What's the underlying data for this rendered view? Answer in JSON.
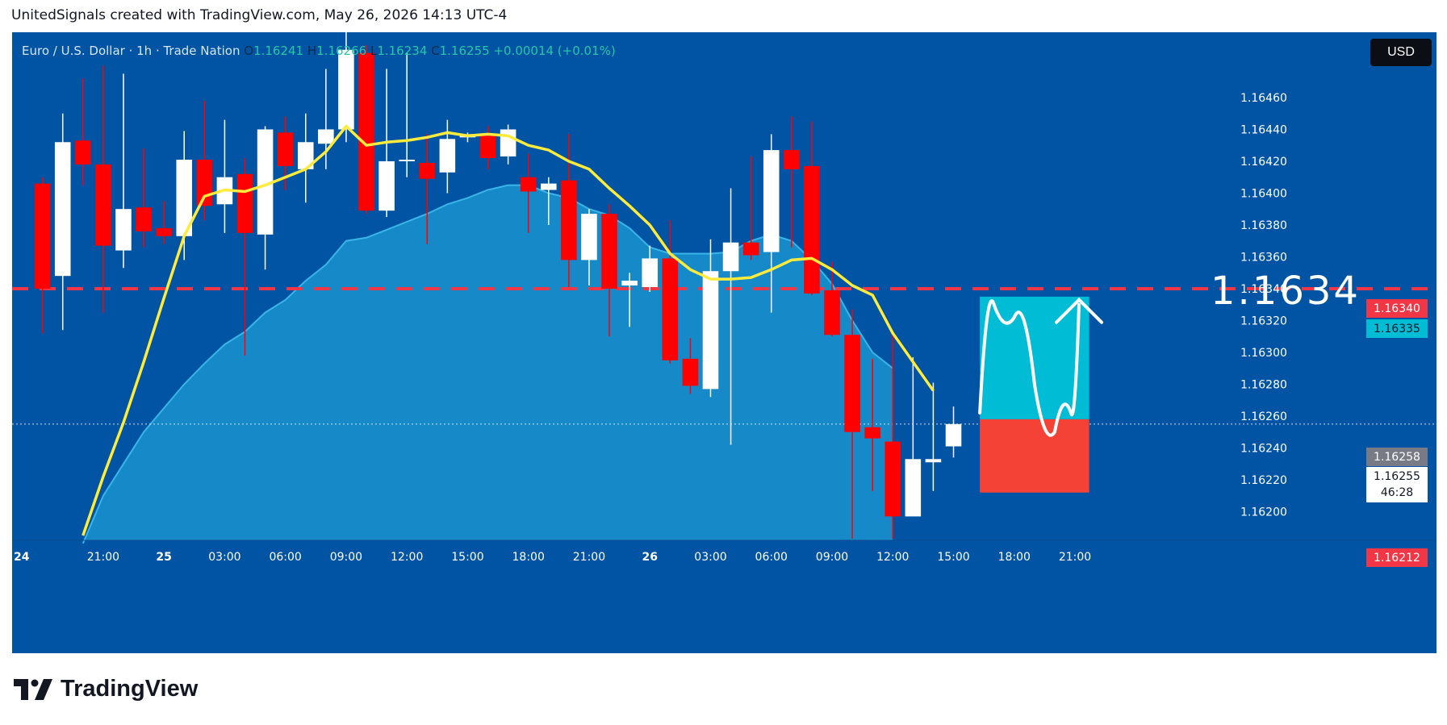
{
  "header": {
    "text": "UnitedSignals created with TradingView.com, May 26, 2026 14:13 UTC-4"
  },
  "legend": {
    "symbol": "Euro / U.S. Dollar · 1h · Trade Nation",
    "o_label": "O",
    "o": "1.16241",
    "h_label": "H",
    "h": "1.16266",
    "l_label": "L",
    "l": "1.16234",
    "c_label": "C",
    "c": "1.16255",
    "change": "+0.00014 (+0.01%)"
  },
  "currency": "USD",
  "target_label": "1.1634",
  "badges": {
    "target": "1.16340",
    "tp": "1.16335",
    "prev": "1.16258",
    "last": "1.16255",
    "countdown": "46:28",
    "sl": "1.16212"
  },
  "footer": {
    "logo": "TradingView"
  },
  "colors": {
    "background": "#0054A3",
    "bull": "#FFFFFF",
    "bear": "#FF0000",
    "ma_fast": "#FFEB3B",
    "ma_slow_fill": "#1E9BD6",
    "target_line": "#F23645",
    "take_profit": "#00BCD4",
    "stop_loss": "#F44336"
  },
  "chart_data": {
    "type": "candlestick",
    "symbol": "EURUSD",
    "timeframe": "1h",
    "y_ticks": [
      1.1646,
      1.1644,
      1.1642,
      1.164,
      1.1638,
      1.1636,
      1.1634,
      1.1632,
      1.163,
      1.1628,
      1.1626,
      1.1624,
      1.1622,
      1.162
    ],
    "y_tick_labels": [
      "1.16460",
      "1.16440",
      "1.16420",
      "1.16400",
      "1.16380",
      "1.16360",
      "1.16340",
      "1.16320",
      "1.16300",
      "1.16280",
      "1.16260",
      "1.16240",
      "1.16220",
      "1.16200"
    ],
    "y_range": [
      1.16182,
      1.16501
    ],
    "x_range": [
      -1.5,
      56.5
    ],
    "x_ticks": [
      {
        "i": -1.5,
        "label": "24"
      },
      {
        "i": 3,
        "label": "21:00"
      },
      {
        "i": 6,
        "label": "25"
      },
      {
        "i": 9,
        "label": "03:00"
      },
      {
        "i": 12,
        "label": "06:00"
      },
      {
        "i": 15,
        "label": "09:00"
      },
      {
        "i": 18,
        "label": "12:00"
      },
      {
        "i": 21,
        "label": "15:00"
      },
      {
        "i": 24,
        "label": "18:00"
      },
      {
        "i": 27,
        "label": "21:00"
      },
      {
        "i": 30,
        "label": "26"
      },
      {
        "i": 33,
        "label": "03:00"
      },
      {
        "i": 36,
        "label": "06:00"
      },
      {
        "i": 39,
        "label": "09:00"
      },
      {
        "i": 42,
        "label": "12:00"
      },
      {
        "i": 45,
        "label": "15:00"
      },
      {
        "i": 48,
        "label": "18:00"
      },
      {
        "i": 51,
        "label": "21:00"
      }
    ],
    "candles": [
      {
        "o": 1.16406,
        "h": 1.1641,
        "l": 1.16312,
        "c": 1.1634
      },
      {
        "o": 1.16348,
        "h": 1.1645,
        "l": 1.16314,
        "c": 1.16432
      },
      {
        "o": 1.16433,
        "h": 1.16472,
        "l": 1.16405,
        "c": 1.16418
      },
      {
        "o": 1.16418,
        "h": 1.1648,
        "l": 1.16325,
        "c": 1.16367
      },
      {
        "o": 1.16364,
        "h": 1.16475,
        "l": 1.16353,
        "c": 1.1639
      },
      {
        "o": 1.16391,
        "h": 1.16428,
        "l": 1.16366,
        "c": 1.16376
      },
      {
        "o": 1.16378,
        "h": 1.16395,
        "l": 1.16368,
        "c": 1.16373
      },
      {
        "o": 1.16373,
        "h": 1.16439,
        "l": 1.16358,
        "c": 1.16421
      },
      {
        "o": 1.16421,
        "h": 1.16458,
        "l": 1.16383,
        "c": 1.16392
      },
      {
        "o": 1.16393,
        "h": 1.16446,
        "l": 1.16375,
        "c": 1.1641
      },
      {
        "o": 1.16412,
        "h": 1.16422,
        "l": 1.16298,
        "c": 1.16375
      },
      {
        "o": 1.16374,
        "h": 1.16442,
        "l": 1.16352,
        "c": 1.1644
      },
      {
        "o": 1.16438,
        "h": 1.16448,
        "l": 1.16402,
        "c": 1.16417
      },
      {
        "o": 1.16415,
        "h": 1.1645,
        "l": 1.16394,
        "c": 1.16432
      },
      {
        "o": 1.16431,
        "h": 1.16478,
        "l": 1.16415,
        "c": 1.1644
      },
      {
        "o": 1.1644,
        "h": 1.16501,
        "l": 1.16432,
        "c": 1.1649
      },
      {
        "o": 1.16488,
        "h": 1.16493,
        "l": 1.16387,
        "c": 1.16389
      },
      {
        "o": 1.16389,
        "h": 1.16478,
        "l": 1.16385,
        "c": 1.1642
      },
      {
        "o": 1.1642,
        "h": 1.16488,
        "l": 1.1641,
        "c": 1.16421
      },
      {
        "o": 1.16419,
        "h": 1.16437,
        "l": 1.16368,
        "c": 1.16409
      },
      {
        "o": 1.16413,
        "h": 1.16446,
        "l": 1.164,
        "c": 1.16434
      },
      {
        "o": 1.16435,
        "h": 1.16438,
        "l": 1.16432,
        "c": 1.16437
      },
      {
        "o": 1.16436,
        "h": 1.16442,
        "l": 1.16415,
        "c": 1.16422
      },
      {
        "o": 1.16423,
        "h": 1.16443,
        "l": 1.16418,
        "c": 1.1644
      },
      {
        "o": 1.1641,
        "h": 1.16425,
        "l": 1.16375,
        "c": 1.16401
      },
      {
        "o": 1.16402,
        "h": 1.1641,
        "l": 1.1638,
        "c": 1.16406
      },
      {
        "o": 1.16408,
        "h": 1.16437,
        "l": 1.16341,
        "c": 1.16358
      },
      {
        "o": 1.16358,
        "h": 1.1639,
        "l": 1.16342,
        "c": 1.16387
      },
      {
        "o": 1.16387,
        "h": 1.16393,
        "l": 1.1631,
        "c": 1.1634
      },
      {
        "o": 1.16342,
        "h": 1.1635,
        "l": 1.16316,
        "c": 1.16345
      },
      {
        "o": 1.16341,
        "h": 1.16367,
        "l": 1.16338,
        "c": 1.16359
      },
      {
        "o": 1.16359,
        "h": 1.16383,
        "l": 1.16293,
        "c": 1.16295
      },
      {
        "o": 1.16296,
        "h": 1.16309,
        "l": 1.16274,
        "c": 1.16279
      },
      {
        "o": 1.16277,
        "h": 1.16371,
        "l": 1.16272,
        "c": 1.16351
      },
      {
        "o": 1.16351,
        "h": 1.16403,
        "l": 1.16242,
        "c": 1.16369
      },
      {
        "o": 1.16369,
        "h": 1.16423,
        "l": 1.16358,
        "c": 1.16361
      },
      {
        "o": 1.16363,
        "h": 1.16437,
        "l": 1.16325,
        "c": 1.16427
      },
      {
        "o": 1.16427,
        "h": 1.16448,
        "l": 1.16366,
        "c": 1.16415
      },
      {
        "o": 1.16417,
        "h": 1.16445,
        "l": 1.16336,
        "c": 1.16337
      },
      {
        "o": 1.16339,
        "h": 1.16357,
        "l": 1.1631,
        "c": 1.16311
      },
      {
        "o": 1.16311,
        "h": 1.16327,
        "l": 1.16183,
        "c": 1.1625
      },
      {
        "o": 1.16253,
        "h": 1.16296,
        "l": 1.16213,
        "c": 1.16246
      },
      {
        "o": 1.16244,
        "h": 1.16312,
        "l": 1.16183,
        "c": 1.16197
      },
      {
        "o": 1.16197,
        "h": 1.16297,
        "l": 1.16198,
        "c": 1.16233
      },
      {
        "o": 1.16231,
        "h": 1.16281,
        "l": 1.16213,
        "c": 1.16233
      },
      {
        "o": 1.16241,
        "h": 1.16266,
        "l": 1.16234,
        "c": 1.16255
      }
    ],
    "ma_fast": [
      null,
      null,
      1.16185,
      1.16222,
      1.16256,
      1.16294,
      1.16334,
      1.16373,
      1.16398,
      1.16402,
      1.16401,
      1.16405,
      1.1641,
      1.16415,
      1.16426,
      1.16442,
      1.1643,
      1.16432,
      1.16433,
      1.16435,
      1.16438,
      1.16436,
      1.16437,
      1.16436,
      1.1643,
      1.16427,
      1.1642,
      1.16415,
      1.16403,
      1.16392,
      1.1638,
      1.16362,
      1.16352,
      1.16346,
      1.16346,
      1.16347,
      1.16352,
      1.16358,
      1.16359,
      1.16352,
      1.16342,
      1.16336,
      1.16312,
      1.16294,
      1.16276
    ],
    "ma_slow": [
      null,
      null,
      1.1618,
      1.1621,
      1.1623,
      1.1625,
      1.16265,
      1.1628,
      1.16293,
      1.16305,
      1.16313,
      1.16325,
      1.16333,
      1.16345,
      1.16355,
      1.1637,
      1.16372,
      1.16377,
      1.16382,
      1.16387,
      1.16393,
      1.16397,
      1.16402,
      1.16405,
      1.16405,
      1.164,
      1.16397,
      1.1639,
      1.16386,
      1.16378,
      1.16366,
      1.16362,
      1.16362,
      1.16362,
      1.16363,
      1.1637,
      1.16374,
      1.1637,
      1.16358,
      1.16343,
      1.1632,
      1.163,
      1.1629
    ],
    "levels": {
      "target": 1.1634,
      "take_profit": 1.16335,
      "entry": 1.16258,
      "stop_loss": 1.16212,
      "last_price": 1.16255
    },
    "position_box": {
      "x_start": 46.3,
      "x_end": 51.7,
      "take_profit": 1.16335,
      "entry": 1.16258,
      "stop_loss": 1.16212
    },
    "projection_path": [
      [
        46.3,
        1.16262
      ],
      [
        47.0,
        1.1633
      ],
      [
        48.0,
        1.16322
      ],
      [
        49.0,
        1.1628
      ],
      [
        50.0,
        1.1625
      ],
      [
        50.8,
        1.16262
      ],
      [
        51.2,
        1.1633
      ]
    ]
  }
}
